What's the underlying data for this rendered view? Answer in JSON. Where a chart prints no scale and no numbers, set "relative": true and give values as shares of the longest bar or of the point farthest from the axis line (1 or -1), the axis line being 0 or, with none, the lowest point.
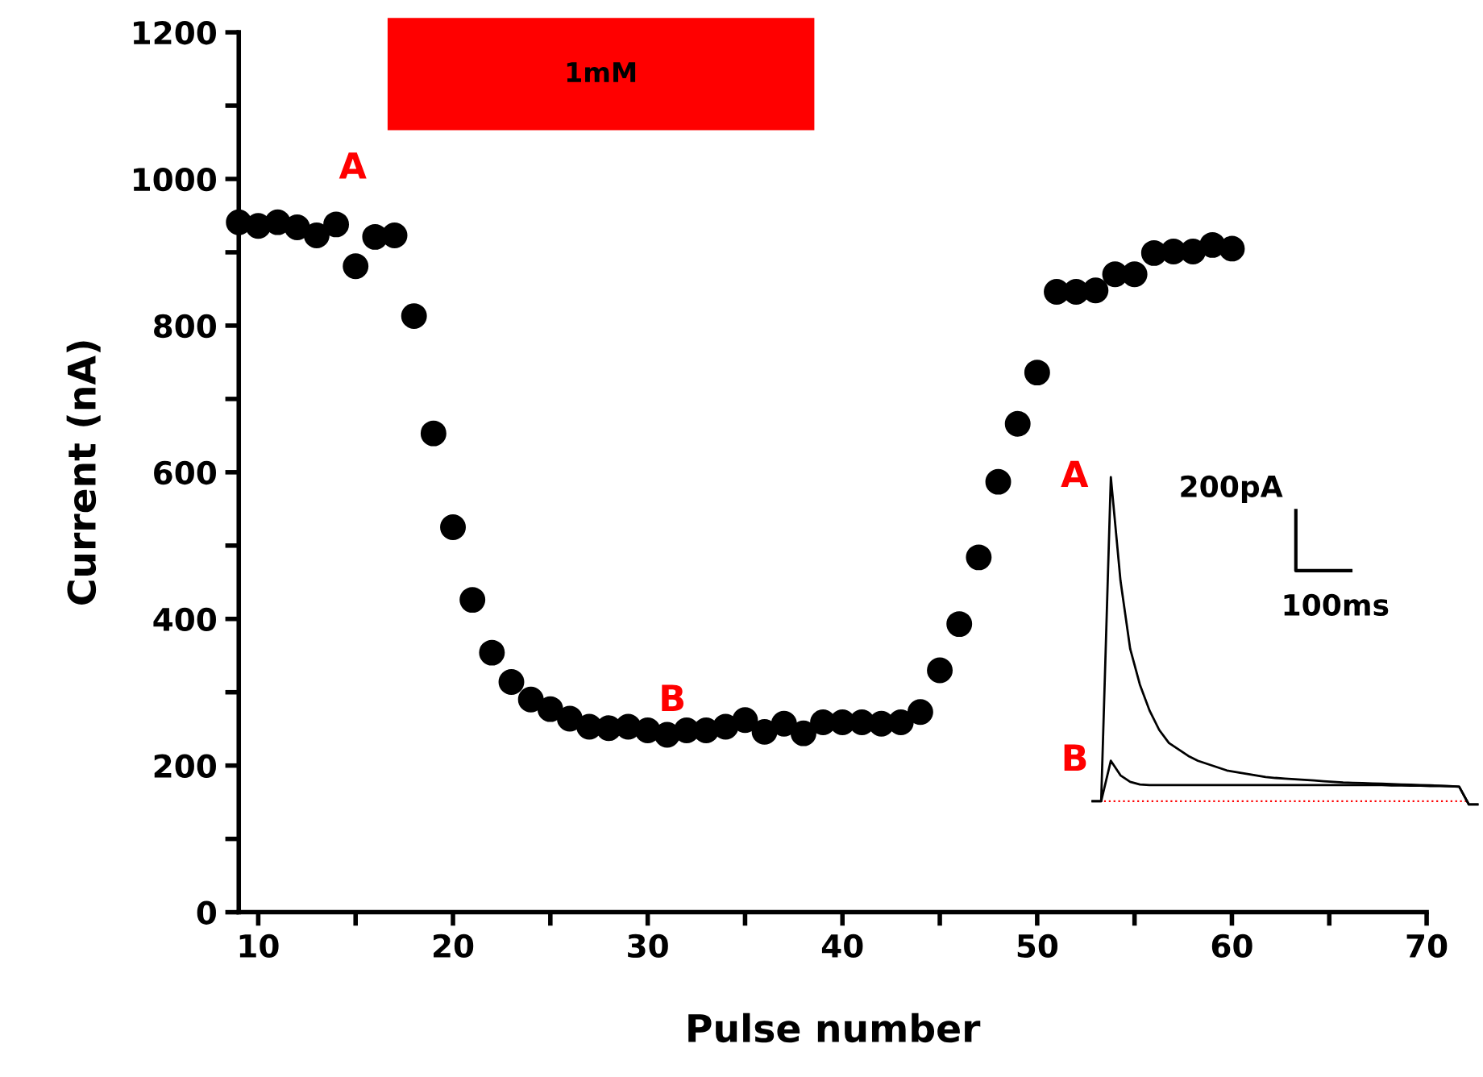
{
  "chart_data": [
    {
      "type": "scatter",
      "xlabel": "Pulse number",
      "ylabel": "Current (nA)",
      "x": [
        9,
        10,
        11,
        12,
        13,
        14,
        15,
        16,
        17,
        18,
        19,
        20,
        21,
        22,
        23,
        24,
        25,
        26,
        27,
        28,
        29,
        30,
        31,
        32,
        33,
        34,
        35,
        36,
        37,
        38,
        39,
        40,
        41,
        42,
        43,
        44,
        45,
        46,
        47,
        48,
        49,
        50,
        51,
        52,
        53,
        54,
        55,
        56,
        57,
        58,
        59,
        60
      ],
      "series": [
        {
          "color": "#000000",
          "values": [
            941,
            936,
            941,
            934,
            923,
            938,
            881,
            921,
            923,
            813,
            653,
            525,
            426,
            354,
            314,
            290,
            277,
            264,
            253,
            251,
            253,
            248,
            242,
            248,
            248,
            253,
            262,
            246,
            257,
            244,
            259,
            259,
            259,
            257,
            259,
            273,
            330,
            393,
            484,
            587,
            666,
            736,
            846,
            846,
            848,
            870,
            870,
            899,
            901,
            901,
            910,
            905
          ]
        }
      ],
      "marker": "circle",
      "xlim": [
        9,
        70
      ],
      "ylim": [
        0,
        1200
      ],
      "xticks": [
        10,
        {
          "value": 15,
          "label": null
        },
        20,
        {
          "value": 25,
          "label": null
        },
        30,
        {
          "value": 35,
          "label": null
        },
        40,
        {
          "value": 45,
          "label": null
        },
        50,
        {
          "value": 55,
          "label": null
        },
        60,
        {
          "value": 65,
          "label": null
        },
        70
      ],
      "yticks": [
        0,
        {
          "value": 100,
          "label": null
        },
        200,
        {
          "value": 300,
          "label": null
        },
        400,
        {
          "value": 500,
          "label": null
        },
        600,
        {
          "value": 700,
          "label": null
        },
        800,
        {
          "value": 900,
          "label": null
        },
        1000,
        {
          "value": 1100,
          "label": null
        },
        1200
      ],
      "bands": [
        {
          "axis": "x",
          "from": 16.7,
          "to": 38.5,
          "label": "1mM",
          "color": "#ff0000"
        }
      ],
      "annotations": [
        "A",
        "B"
      ],
      "grid": false
    },
    {
      "type": "line",
      "relative": true,
      "categories": [
        null,
        null,
        null,
        null,
        null,
        null,
        null,
        null,
        null,
        null,
        null,
        null,
        null,
        null,
        null,
        null,
        null,
        null,
        null,
        null,
        null,
        null,
        null,
        null,
        null,
        null,
        null,
        null,
        null,
        null,
        null,
        null,
        null,
        null,
        null,
        null,
        null,
        null,
        null,
        null,
        null
      ],
      "series": [
        {
          "name": "A",
          "color": "#000000",
          "values": [
            0,
            0,
            1.0,
            0.68,
            0.47,
            0.36,
            0.28,
            0.22,
            0.18,
            0.16,
            0.14,
            0.125,
            0.115,
            0.105,
            0.095,
            0.09,
            0.085,
            0.08,
            0.075,
            0.072,
            0.07,
            0.068,
            0.066,
            0.064,
            0.062,
            0.06,
            0.058,
            0.057,
            0.056,
            0.055,
            0.054,
            0.053,
            0.052,
            0.051,
            0.05,
            0.049,
            0.048,
            0.047,
            0.045,
            -0.01,
            -0.01
          ]
        },
        {
          "name": "B",
          "color": "#000000",
          "values": [
            0,
            0,
            0.125,
            0.08,
            0.06,
            0.052,
            0.05,
            0.05,
            0.05,
            0.05,
            0.05,
            0.05,
            0.05,
            0.05,
            0.05,
            0.05,
            0.05,
            0.05,
            0.05,
            0.05,
            0.05,
            0.05,
            0.05,
            0.05,
            0.05,
            0.05,
            0.05,
            0.05,
            0.05,
            0.05,
            0.05,
            0.049,
            0.049,
            0.048,
            0.048,
            0.047,
            0.047,
            0.046,
            0.045,
            -0.01,
            -0.01
          ]
        }
      ],
      "ref_lines": [
        {
          "axis": "y",
          "value": 0,
          "color": "#ff0000",
          "line_style": "dotted"
        }
      ],
      "annotations": [
        "200pA",
        "100ms"
      ]
    }
  ]
}
